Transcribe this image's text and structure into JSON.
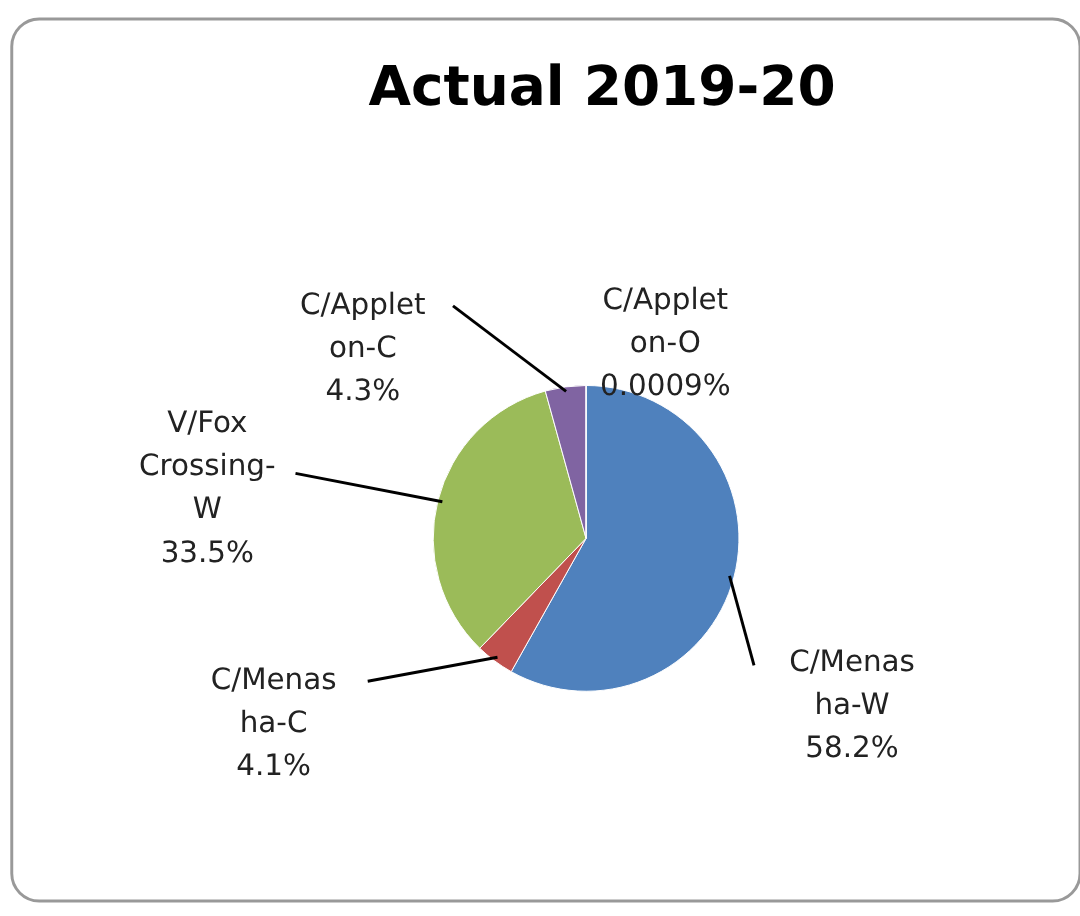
{
  "chart_data": {
    "type": "pie",
    "title": "Actual 2019-20",
    "categories": [
      "C/Menasha-W",
      "C/Menasha-C",
      "V/Fox Crossing-W",
      "C/Appleton-C",
      "C/Appleton-O"
    ],
    "values": [
      58.2,
      4.1,
      33.5,
      4.3,
      0.0009
    ],
    "colors": [
      "#4f81bd",
      "#c0504d",
      "#9bbb59",
      "#8064a2",
      "#4bacc6"
    ],
    "value_labels": [
      "58.2%",
      "4.1%",
      "33.5%",
      "4.3%",
      "0.0009%"
    ],
    "legend": false
  }
}
